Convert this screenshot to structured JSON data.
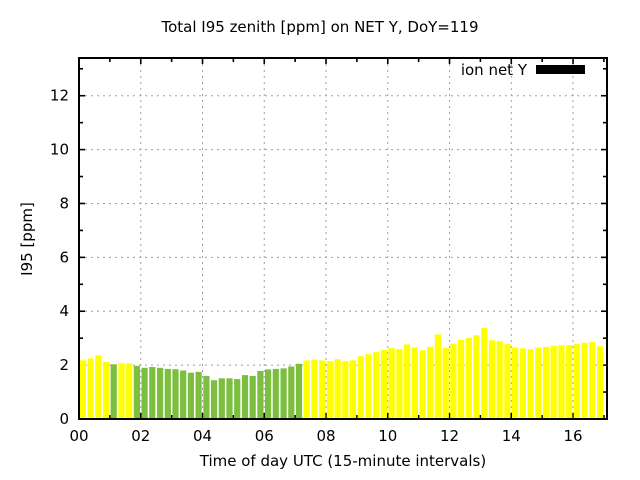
{
  "colors": {
    "background": "#ffffff",
    "text": "#000000",
    "grid": "#a0a0a0",
    "frame": "#000000",
    "bar_yellow": "#ffff00",
    "bar_green": "#7cbf3f",
    "legend_swatch": "#000000"
  },
  "chart_data": {
    "type": "bar",
    "title": "Total I95 zenith [ppm] on NET Y, DoY=119",
    "xlabel": "Time of day UTC (15-minute intervals)",
    "ylabel": "I95 [ppm]",
    "legend": {
      "label": "ion net Y",
      "position": "top-right",
      "swatch_color": "#000000"
    },
    "grid": true,
    "interval_minutes": 15,
    "x_tick_labels": [
      "00",
      "02",
      "04",
      "06",
      "08",
      "10",
      "12",
      "14",
      "16"
    ],
    "x_tick_hours": [
      0,
      2,
      4,
      6,
      8,
      10,
      12,
      14,
      16
    ],
    "x_minor_tick_hours": [
      1,
      3,
      5,
      7,
      9,
      11,
      13,
      15,
      17
    ],
    "y_ticks": [
      0,
      2,
      4,
      6,
      8,
      10,
      12
    ],
    "y_minor_ticks": [
      1,
      3,
      5,
      7,
      9,
      11,
      13
    ],
    "xlim_hours": [
      0,
      17.1
    ],
    "ylim": [
      0,
      13.4
    ],
    "times": [
      "00:00",
      "00:15",
      "00:30",
      "00:45",
      "01:00",
      "01:15",
      "01:30",
      "01:45",
      "02:00",
      "02:15",
      "02:30",
      "02:45",
      "03:00",
      "03:15",
      "03:30",
      "03:45",
      "04:00",
      "04:15",
      "04:30",
      "04:45",
      "05:00",
      "05:15",
      "05:30",
      "05:45",
      "06:00",
      "06:15",
      "06:30",
      "06:45",
      "07:00",
      "07:15",
      "07:30",
      "07:45",
      "08:00",
      "08:15",
      "08:30",
      "08:45",
      "09:00",
      "09:15",
      "09:30",
      "09:45",
      "10:00",
      "10:15",
      "10:30",
      "10:45",
      "11:00",
      "11:15",
      "11:30",
      "11:45",
      "12:00",
      "12:15",
      "12:30",
      "12:45",
      "13:00",
      "13:15",
      "13:30",
      "13:45",
      "14:00",
      "14:15",
      "14:30",
      "14:45",
      "15:00",
      "15:15",
      "15:30",
      "15:45",
      "16:00",
      "16:15",
      "16:30",
      "16:45"
    ],
    "values": [
      2.18,
      2.25,
      2.37,
      2.12,
      2.03,
      2.07,
      2.07,
      1.97,
      1.9,
      1.93,
      1.9,
      1.86,
      1.85,
      1.8,
      1.72,
      1.75,
      1.6,
      1.44,
      1.51,
      1.51,
      1.48,
      1.63,
      1.6,
      1.78,
      1.84,
      1.86,
      1.88,
      1.95,
      2.05,
      2.17,
      2.21,
      2.17,
      2.15,
      2.22,
      2.15,
      2.18,
      2.33,
      2.41,
      2.48,
      2.56,
      2.63,
      2.59,
      2.77,
      2.65,
      2.55,
      2.68,
      3.14,
      2.64,
      2.78,
      2.94,
      3.01,
      3.11,
      3.38,
      2.92,
      2.89,
      2.78,
      2.65,
      2.62,
      2.59,
      2.65,
      2.68,
      2.72,
      2.74,
      2.74,
      2.78,
      2.83,
      2.86,
      2.7
    ],
    "bar_colors": "yyyygyyggggggggggggggggggggggyyyyyyyyyyyyyyyyyyyyyyyyyyyyyyyyyyyyyyy"
  }
}
